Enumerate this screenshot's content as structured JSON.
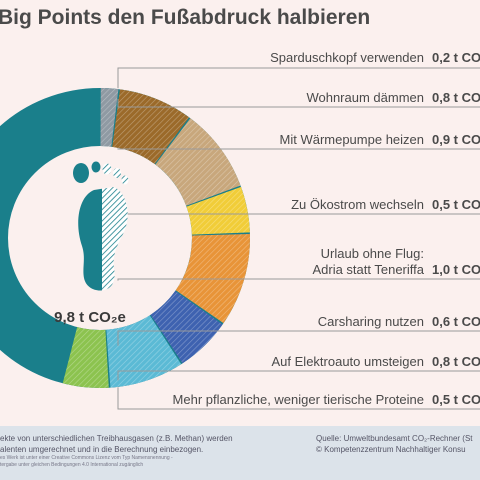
{
  "title": "Big Points den Fußabdruck halbieren",
  "center_label": "9,8 t CO₂e",
  "colors": {
    "base": "#1a7f8b",
    "ring_segments": [
      "#8f9aa3",
      "#9b6a2a",
      "#c8a77c",
      "#f1cd38",
      "#e89438",
      "#3e62b0",
      "#5bbad5",
      "#8cc34f"
    ]
  },
  "chart_data": {
    "type": "pie",
    "style": "donut",
    "total": 9.8,
    "unit": "t CO₂e",
    "categories": [
      "Sparduschkopf verwenden",
      "Wohnraum dämmen",
      "Mit Wärmepumpe heizen",
      "Zu Ökostrom wechseln",
      "Urlaub ohne Flug: Adria statt Teneriffa",
      "Carsharing nutzen",
      "Auf Elektroauto umsteigen",
      "Mehr pflanzliche, weniger tierische Proteine"
    ],
    "values": [
      0.2,
      0.8,
      0.9,
      0.5,
      1.0,
      0.6,
      0.8,
      0.5
    ]
  },
  "rows": [
    {
      "label": "Sparduschkopf verwenden",
      "value": "0,2 t CO"
    },
    {
      "label": "Wohnraum dämmen",
      "value": "0,8 t CO"
    },
    {
      "label": "Mit Wärmepumpe heizen",
      "value": "0,9 t CO"
    },
    {
      "label": "Zu Ökostrom wechseln",
      "value": "0,5 t CO"
    },
    {
      "label_line1": "Urlaub ohne Flug:",
      "label_line2": "Adria statt Teneriffa",
      "value": "1,0 t CO"
    },
    {
      "label": "Carsharing nutzen",
      "value": "0,6 t CO"
    },
    {
      "label": "Auf Elektroauto umsteigen",
      "value": "0,8 t CO"
    },
    {
      "label": "Mehr pflanzliche, weniger tierische Proteine",
      "value": "0,5 t CO"
    }
  ],
  "footer": {
    "left_line1": "ekte von unterschiedlichen Treibhausgasen (z.B. Methan) werden",
    "left_line2": "alenten umgerechnet und in die Berechnung einbezogen.",
    "license_line1": "es Werk ist unter einer Creative Commons Lizenz vom Typ Namensnennung -",
    "license_line2": "tergabe unter gleichen Bedingungen 4.0 International zugänglich",
    "right_line1": "Quelle: Umweltbundesamt CO₂-Rechner (St",
    "right_line2": "© Kompetenzzentrum Nachhaltiger Konsu"
  }
}
